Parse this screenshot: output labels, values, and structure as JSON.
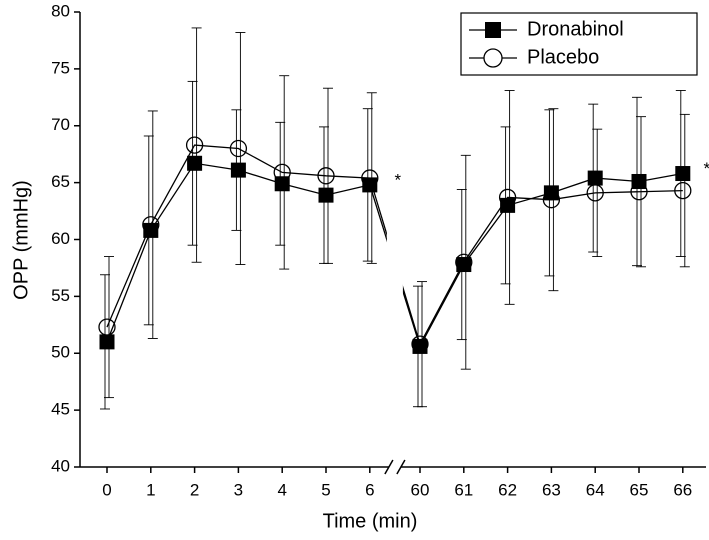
{
  "chart_data": {
    "type": "line",
    "x_label": "Time (min)",
    "y_label": "OPP (mmHg)",
    "categories": [
      "0",
      "1",
      "2",
      "3",
      "4",
      "5",
      "6",
      "60",
      "61",
      "62",
      "63",
      "64",
      "65",
      "66"
    ],
    "series": [
      {
        "name": "Dronabinol",
        "color": "#000000",
        "marker": "filled-square",
        "values": [
          51.0,
          60.8,
          66.7,
          66.1,
          64.9,
          63.9,
          64.8,
          50.6,
          57.8,
          63.0,
          64.1,
          65.4,
          65.1,
          65.8
        ],
        "errors": [
          5.9,
          8.3,
          7.2,
          5.3,
          5.4,
          6.0,
          6.7,
          5.3,
          6.6,
          6.9,
          7.3,
          6.5,
          7.4,
          7.3
        ]
      },
      {
        "name": "Placebo",
        "color": "#000000",
        "marker": "open-circle",
        "values": [
          52.3,
          61.3,
          68.3,
          68.0,
          65.9,
          65.6,
          65.4,
          50.8,
          58.0,
          63.7,
          63.5,
          64.1,
          64.2,
          64.3
        ],
        "errors": [
          6.2,
          10.0,
          10.3,
          10.2,
          8.5,
          7.7,
          7.5,
          5.5,
          9.4,
          9.4,
          8.0,
          5.6,
          6.6,
          6.7
        ]
      }
    ],
    "annotations": [
      "*",
      "*"
    ],
    "ylim": [
      40,
      80
    ],
    "yticks": [
      40,
      45,
      50,
      55,
      60,
      65,
      70,
      75,
      80
    ],
    "legend": "upper-right"
  }
}
